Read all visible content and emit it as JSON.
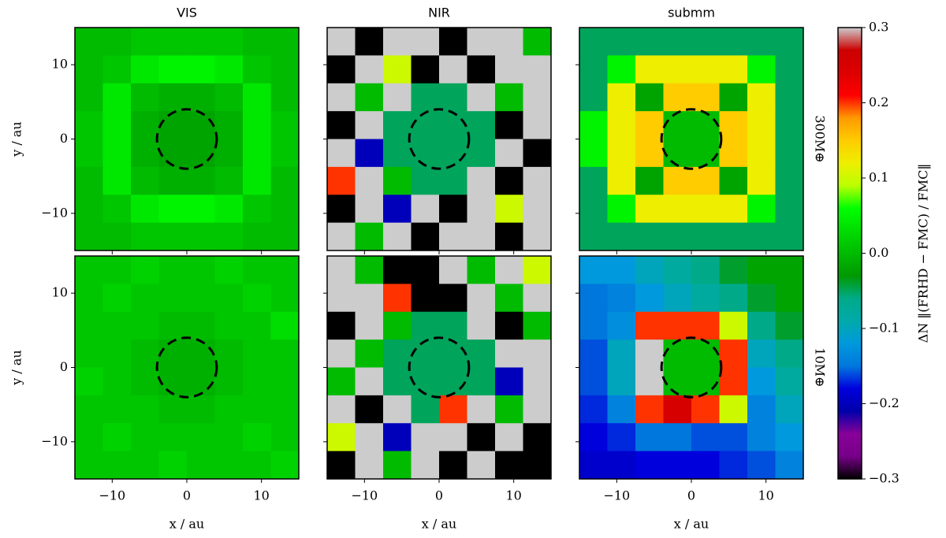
{
  "chart_data": [
    {
      "type": "heatmap",
      "title": "VIS",
      "ylabel": "y / au",
      "xlim": [
        -15,
        15
      ],
      "ylim": [
        -15,
        15
      ],
      "xticks": [
        -10,
        0,
        10
      ],
      "yticks": [
        {
          "value": -10,
          "label": "−10"
        },
        {
          "value": 0,
          "label": "0"
        },
        {
          "value": 10,
          "label": "10"
        }
      ],
      "circle": {
        "x": 0,
        "y": 0,
        "r": 4
      },
      "z": [
        [
          0.0,
          0.0,
          0.01,
          0.01,
          0.01,
          0.01,
          0.0,
          0.0
        ],
        [
          0.0,
          0.01,
          0.04,
          0.05,
          0.05,
          0.04,
          0.01,
          0.0
        ],
        [
          0.0,
          0.04,
          0.0,
          -0.01,
          -0.01,
          0.0,
          0.04,
          0.0
        ],
        [
          0.01,
          0.04,
          -0.01,
          -0.02,
          -0.02,
          -0.01,
          0.04,
          0.01
        ],
        [
          0.01,
          0.04,
          -0.01,
          -0.02,
          -0.02,
          -0.01,
          0.04,
          0.01
        ],
        [
          0.0,
          0.04,
          0.0,
          -0.01,
          -0.01,
          0.0,
          0.04,
          0.0
        ],
        [
          0.0,
          0.01,
          0.04,
          0.05,
          0.05,
          0.04,
          0.01,
          0.0
        ],
        [
          0.0,
          0.0,
          0.01,
          0.01,
          0.01,
          0.01,
          0.0,
          0.0
        ]
      ]
    },
    {
      "type": "heatmap",
      "title": "NIR",
      "xlim": [
        -15,
        15
      ],
      "ylim": [
        -15,
        15
      ],
      "xticks": [
        -10,
        0,
        10
      ],
      "yticks": [
        -10,
        0,
        10
      ],
      "circle": {
        "x": 0,
        "y": 0,
        "r": 4
      },
      "z": [
        [
          0.3,
          -0.3,
          0.3,
          0.3,
          -0.3,
          0.3,
          0.3,
          0.0
        ],
        [
          -0.3,
          0.3,
          0.1,
          -0.3,
          0.3,
          -0.3,
          0.3,
          0.3
        ],
        [
          0.3,
          0.0,
          0.3,
          -0.05,
          -0.05,
          0.3,
          0.0,
          0.3
        ],
        [
          -0.3,
          0.3,
          -0.05,
          -0.05,
          -0.05,
          -0.05,
          -0.3,
          0.3
        ],
        [
          0.3,
          -0.2,
          -0.05,
          -0.05,
          -0.05,
          -0.05,
          0.3,
          -0.3
        ],
        [
          0.2,
          0.3,
          0.0,
          -0.05,
          -0.05,
          0.3,
          -0.3,
          0.3
        ],
        [
          -0.3,
          0.3,
          -0.2,
          0.3,
          -0.3,
          0.3,
          0.1,
          0.3
        ],
        [
          0.3,
          0.0,
          0.3,
          -0.3,
          0.3,
          0.3,
          -0.3,
          0.3
        ]
      ]
    },
    {
      "type": "heatmap",
      "title": "submm",
      "row_label": "300M⊕",
      "xlim": [
        -15,
        15
      ],
      "ylim": [
        -15,
        15
      ],
      "xticks": [
        -10,
        0,
        10
      ],
      "yticks": [
        -10,
        0,
        10
      ],
      "circle": {
        "x": 0,
        "y": 0,
        "r": 4
      },
      "z": [
        [
          -0.05,
          -0.05,
          -0.05,
          -0.05,
          -0.05,
          -0.05,
          -0.05,
          -0.05
        ],
        [
          -0.05,
          0.05,
          0.12,
          0.12,
          0.12,
          0.12,
          0.05,
          -0.05
        ],
        [
          -0.05,
          0.12,
          -0.02,
          0.15,
          0.15,
          -0.02,
          0.12,
          -0.05
        ],
        [
          0.05,
          0.12,
          0.15,
          0.0,
          0.0,
          0.15,
          0.12,
          -0.05
        ],
        [
          0.05,
          0.12,
          0.15,
          0.0,
          0.0,
          0.15,
          0.12,
          -0.05
        ],
        [
          -0.05,
          0.12,
          -0.02,
          0.15,
          0.15,
          -0.02,
          0.12,
          -0.05
        ],
        [
          -0.05,
          0.05,
          0.12,
          0.12,
          0.12,
          0.12,
          0.05,
          -0.05
        ],
        [
          -0.05,
          -0.05,
          -0.05,
          -0.05,
          -0.05,
          -0.05,
          -0.05,
          -0.05
        ]
      ]
    },
    {
      "type": "heatmap",
      "ylabel": "y / au",
      "xlabel": "x / au",
      "xlim": [
        -15,
        15
      ],
      "ylim": [
        -15,
        15
      ],
      "xticks": [
        {
          "value": -10,
          "label": "−10"
        },
        {
          "value": 0,
          "label": "0"
        },
        {
          "value": 10,
          "label": "10"
        }
      ],
      "yticks": [
        {
          "value": -10,
          "label": "−10"
        },
        {
          "value": 0,
          "label": "0"
        },
        {
          "value": 10,
          "label": "10"
        }
      ],
      "circle": {
        "x": 0,
        "y": 0,
        "r": 4
      },
      "z": [
        [
          0.01,
          0.01,
          0.02,
          0.01,
          0.01,
          0.02,
          0.01,
          0.01
        ],
        [
          0.01,
          0.02,
          0.01,
          0.01,
          0.01,
          0.01,
          0.02,
          0.01
        ],
        [
          0.01,
          0.01,
          0.01,
          0.0,
          0.0,
          0.01,
          0.01,
          0.03
        ],
        [
          0.01,
          0.01,
          0.0,
          -0.01,
          -0.01,
          0.0,
          0.01,
          0.01
        ],
        [
          0.02,
          0.01,
          0.0,
          -0.01,
          -0.01,
          0.0,
          0.01,
          0.01
        ],
        [
          0.01,
          0.01,
          0.01,
          0.0,
          0.0,
          0.01,
          0.01,
          0.01
        ],
        [
          0.01,
          0.02,
          0.01,
          0.01,
          0.01,
          0.01,
          0.02,
          0.01
        ],
        [
          0.01,
          0.01,
          0.01,
          0.02,
          0.01,
          0.01,
          0.01,
          0.02
        ]
      ]
    },
    {
      "type": "heatmap",
      "xlabel": "x / au",
      "xlim": [
        -15,
        15
      ],
      "ylim": [
        -15,
        15
      ],
      "xticks": [
        {
          "value": -10,
          "label": "−10"
        },
        {
          "value": 0,
          "label": "0"
        },
        {
          "value": 10,
          "label": "10"
        }
      ],
      "yticks": [
        -10,
        0,
        10
      ],
      "circle": {
        "x": 0,
        "y": 0,
        "r": 4
      },
      "z": [
        [
          0.3,
          0.0,
          -0.3,
          -0.3,
          0.3,
          0.0,
          0.3,
          0.1
        ],
        [
          0.3,
          0.3,
          0.2,
          -0.3,
          -0.3,
          0.3,
          0.0,
          0.3
        ],
        [
          -0.3,
          0.3,
          0.0,
          -0.05,
          -0.05,
          0.3,
          -0.3,
          0.0
        ],
        [
          0.3,
          0.0,
          -0.05,
          -0.05,
          -0.05,
          -0.05,
          0.3,
          0.3
        ],
        [
          0.0,
          0.3,
          -0.05,
          -0.05,
          -0.05,
          -0.05,
          -0.2,
          0.3
        ],
        [
          0.3,
          -0.3,
          0.3,
          -0.05,
          0.2,
          0.3,
          0.0,
          0.3
        ],
        [
          0.1,
          0.3,
          -0.2,
          0.3,
          0.3,
          -0.3,
          0.3,
          -0.3
        ],
        [
          -0.3,
          0.3,
          0.0,
          0.3,
          -0.3,
          0.3,
          -0.3,
          -0.3
        ]
      ]
    },
    {
      "type": "heatmap",
      "xlabel": "x / au",
      "row_label": "10M⊕",
      "xlim": [
        -15,
        15
      ],
      "ylim": [
        -15,
        15
      ],
      "xticks": [
        {
          "value": -10,
          "label": "−10"
        },
        {
          "value": 0,
          "label": "0"
        },
        {
          "value": 10,
          "label": "10"
        }
      ],
      "yticks": [
        -10,
        0,
        10
      ],
      "circle": {
        "x": 0,
        "y": 0,
        "r": 4
      },
      "z": [
        [
          -0.12,
          -0.12,
          -0.1,
          -0.08,
          -0.06,
          -0.04,
          -0.02,
          -0.02
        ],
        [
          -0.15,
          -0.14,
          -0.12,
          -0.1,
          -0.08,
          -0.06,
          -0.04,
          -0.02
        ],
        [
          -0.15,
          -0.13,
          0.2,
          0.2,
          0.2,
          0.1,
          -0.06,
          -0.04
        ],
        [
          -0.16,
          -0.1,
          0.3,
          0.0,
          0.0,
          0.2,
          -0.1,
          -0.06
        ],
        [
          -0.16,
          -0.1,
          0.3,
          0.0,
          0.0,
          0.2,
          -0.12,
          -0.08
        ],
        [
          -0.17,
          -0.14,
          0.2,
          0.25,
          0.2,
          0.1,
          -0.14,
          -0.1
        ],
        [
          -0.18,
          -0.17,
          -0.15,
          -0.15,
          -0.16,
          -0.16,
          -0.14,
          -0.12
        ],
        [
          -0.19,
          -0.19,
          -0.18,
          -0.18,
          -0.18,
          -0.17,
          -0.16,
          -0.14
        ]
      ]
    }
  ],
  "colorbar": {
    "label": "ΔN ‖(FRHD − FMC) / FMC‖",
    "zlim": [
      -0.3,
      0.3
    ],
    "zticks": [
      {
        "value": -0.3,
        "label": "−0.3"
      },
      {
        "value": -0.2,
        "label": "−0.2"
      },
      {
        "value": -0.1,
        "label": "−0.1"
      },
      {
        "value": 0,
        "label": "0.0"
      },
      0.1,
      0.2,
      0.3
    ]
  }
}
